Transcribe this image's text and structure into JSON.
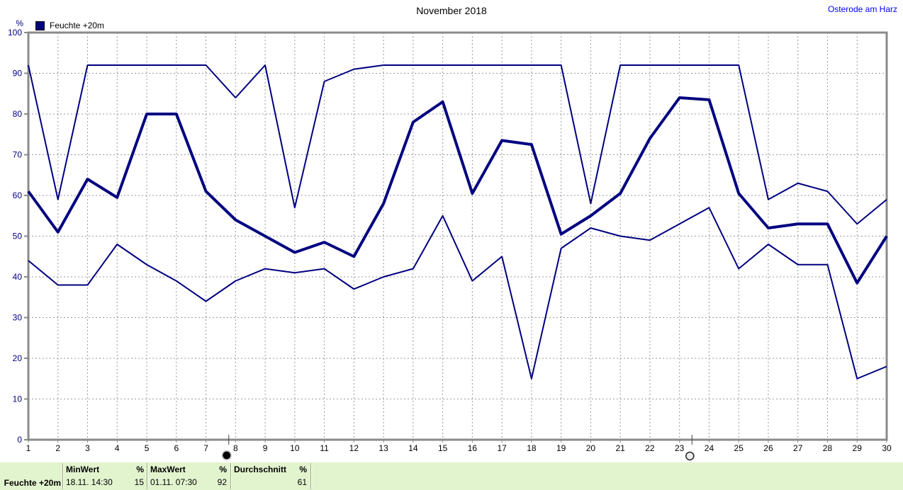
{
  "header": {
    "title": "November 2018",
    "station": "Osterode am Harz"
  },
  "legend": {
    "label": "Feuchte +20m",
    "swatch_color": "#000080"
  },
  "y_axis": {
    "unit_label": "%"
  },
  "colors": {
    "line": "#000080",
    "grid": "#9a9a9a",
    "frame": "#8a8a8a",
    "axis_text_y": "#000080",
    "axis_text_x": "#000000",
    "station_text": "#0000ff",
    "footer_background": "#e2f4ce"
  },
  "chart_data": {
    "type": "line",
    "title": "November 2018",
    "xlabel": "",
    "ylabel": "%",
    "ylim": [
      0,
      100
    ],
    "y_ticks": [
      0,
      10,
      20,
      30,
      40,
      50,
      60,
      70,
      80,
      90,
      100
    ],
    "grid": "dashed",
    "x": [
      1,
      2,
      3,
      4,
      5,
      6,
      7,
      8,
      9,
      10,
      11,
      12,
      13,
      14,
      15,
      16,
      17,
      18,
      19,
      20,
      21,
      22,
      23,
      24,
      25,
      26,
      27,
      28,
      29,
      30
    ],
    "series": [
      {
        "name": "MaxWert",
        "style": "thin",
        "values": [
          92,
          59,
          92,
          92,
          92,
          92,
          92,
          84,
          92,
          57,
          88,
          91,
          92,
          92,
          92,
          92,
          92,
          92,
          92,
          58,
          92,
          92,
          92,
          92,
          92,
          59,
          63,
          61,
          53,
          59
        ]
      },
      {
        "name": "Durchschnitt",
        "style": "thick",
        "values": [
          61,
          51,
          64,
          59.5,
          80,
          80,
          61,
          54,
          50,
          46,
          48.5,
          45,
          58,
          78,
          83,
          60.5,
          73.5,
          72.5,
          50.5,
          55,
          60.5,
          74,
          84,
          83.5,
          60.5,
          52,
          53,
          53,
          38.5,
          50
        ]
      },
      {
        "name": "MinWert",
        "style": "thin",
        "values": [
          44,
          38,
          38,
          48,
          43,
          39,
          34,
          39,
          42,
          41,
          42,
          37,
          40,
          42,
          55,
          39,
          45,
          15,
          47,
          52,
          50,
          49,
          53,
          57,
          42,
          48,
          43,
          43,
          15,
          18
        ]
      }
    ],
    "moon_markers": [
      {
        "day": 7.7,
        "phase": "new-moon"
      },
      {
        "day": 23.35,
        "phase": "full-moon"
      }
    ]
  },
  "footer": {
    "row_label": "Feuchte +20m",
    "min": {
      "header": "MinWert",
      "unit": "%",
      "timestamp": "18.11.  14:30",
      "value": "15"
    },
    "max": {
      "header": "MaxWert",
      "unit": "%",
      "timestamp": "01.11.  07:30",
      "value": "92"
    },
    "avg": {
      "header": "Durchschnitt",
      "unit": "%",
      "value": "61"
    }
  }
}
